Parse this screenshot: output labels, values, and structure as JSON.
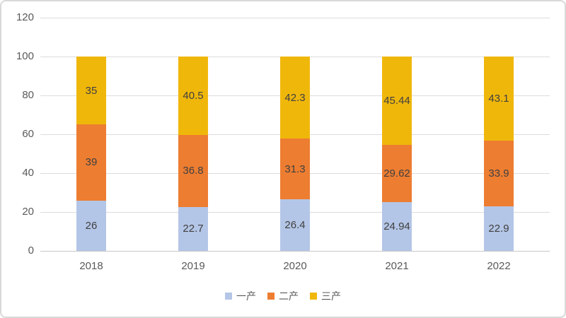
{
  "chart_data": {
    "type": "bar",
    "stacked": true,
    "title": "",
    "xlabel": "",
    "ylabel": "",
    "categories": [
      "2018",
      "2019",
      "2020",
      "2021",
      "2022"
    ],
    "series": [
      {
        "name": "一产",
        "color": "#b4c6e7",
        "values": [
          26,
          22.7,
          26.4,
          24.94,
          22.9
        ],
        "labels": [
          "26",
          "22.7",
          "26.4",
          "24.94",
          "22.9"
        ]
      },
      {
        "name": "二产",
        "color": "#ed7d31",
        "values": [
          39,
          36.8,
          31.3,
          29.62,
          33.9
        ],
        "labels": [
          "39",
          "36.8",
          "31.3",
          "29.62",
          "33.9"
        ]
      },
      {
        "name": "三产",
        "color": "#f0b70b",
        "values": [
          35,
          40.5,
          42.3,
          45.44,
          43.1
        ],
        "labels": [
          "35",
          "40.5",
          "42.3",
          "45.44",
          "43.1"
        ]
      }
    ],
    "ylim": [
      0,
      120
    ],
    "yticks": [
      0,
      20,
      40,
      60,
      80,
      100,
      120
    ],
    "grid": true,
    "legend_position": "bottom"
  },
  "style": {
    "gridline_color": "#dcdcdc",
    "axis_line_color": "#c8c8c8",
    "tick_label_color": "#595959",
    "data_label_color": "#404040",
    "border_color": "#d9d9d9",
    "background": "#ffffff"
  }
}
